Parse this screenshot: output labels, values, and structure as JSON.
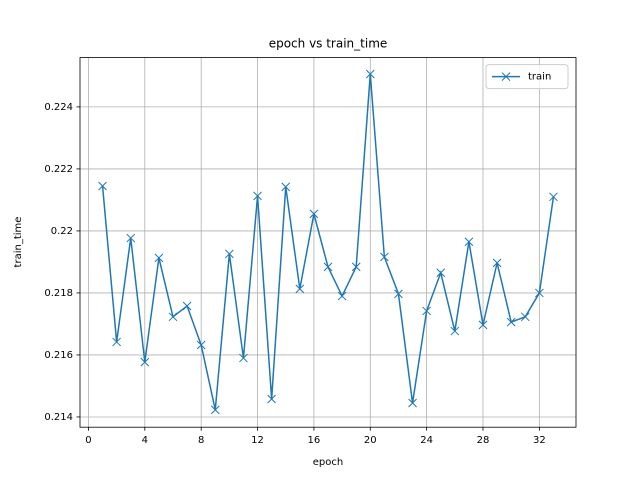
{
  "chart_data": {
    "type": "line",
    "title": "epoch vs train_time",
    "x_label": "epoch",
    "y_label": "train_time",
    "x": [
      1,
      2,
      3,
      4,
      5,
      6,
      7,
      8,
      9,
      10,
      11,
      12,
      13,
      14,
      15,
      16,
      17,
      18,
      19,
      20,
      21,
      22,
      23,
      24,
      25,
      26,
      27,
      28,
      29,
      30,
      31,
      32,
      33
    ],
    "series": [
      {
        "name": "train",
        "color": "#1f77b4",
        "marker": "x",
        "values": [
          0.22145,
          0.21642,
          0.21977,
          0.21577,
          0.21913,
          0.21723,
          0.21758,
          0.21632,
          0.21423,
          0.21926,
          0.2159,
          0.22113,
          0.21458,
          0.22142,
          0.21813,
          0.22055,
          0.21884,
          0.2179,
          0.21884,
          0.22506,
          0.21916,
          0.21797,
          0.21445,
          0.21742,
          0.21865,
          0.21677,
          0.21965,
          0.21697,
          0.21897,
          0.21706,
          0.21723,
          0.218,
          0.2211
        ]
      }
    ],
    "xlim": [
      -0.6,
      34.6
    ],
    "ylim": [
      0.21367,
      0.22559
    ],
    "xticks": [
      0,
      4,
      8,
      12,
      16,
      20,
      24,
      28,
      32
    ],
    "yticks": [
      0.214,
      0.216,
      0.218,
      0.22,
      0.222,
      0.224
    ],
    "grid": true,
    "legend_position": "upper right"
  }
}
